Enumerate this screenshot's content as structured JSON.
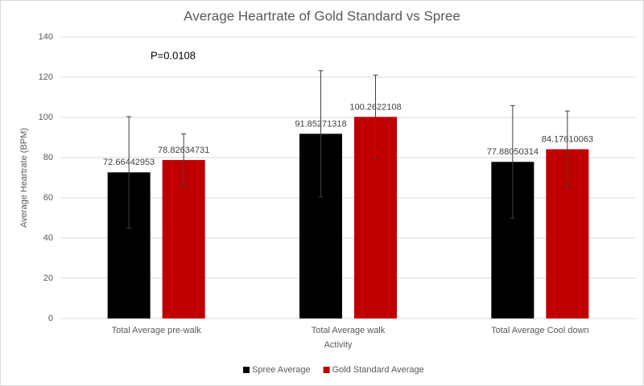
{
  "chart_data": {
    "type": "bar",
    "title": "Average Heartrate of Gold Standard vs Spree",
    "x_label": "Activity",
    "y_label": "Average Heartrate (BPM)",
    "annotation": "P=0.0108",
    "categories": [
      "Total Average pre-walk",
      "Total Average walk",
      "Total Average Cool down"
    ],
    "series": [
      {
        "name": "Spree Average",
        "color": "#000000",
        "values": [
          72.66442953,
          91.85271318,
          77.88050314
        ],
        "errors": [
          27.7,
          31.4,
          28
        ]
      },
      {
        "name": "Gold Standard Average",
        "color": "#c00000",
        "values": [
          78.82634731,
          100.2622108,
          84.17610063
        ],
        "errors": [
          13,
          20.8,
          19
        ]
      }
    ],
    "ylim": [
      0,
      140
    ],
    "yticks": [
      0,
      20,
      40,
      60,
      80,
      100,
      120,
      140
    ],
    "grid": true,
    "legend": "bottom"
  }
}
